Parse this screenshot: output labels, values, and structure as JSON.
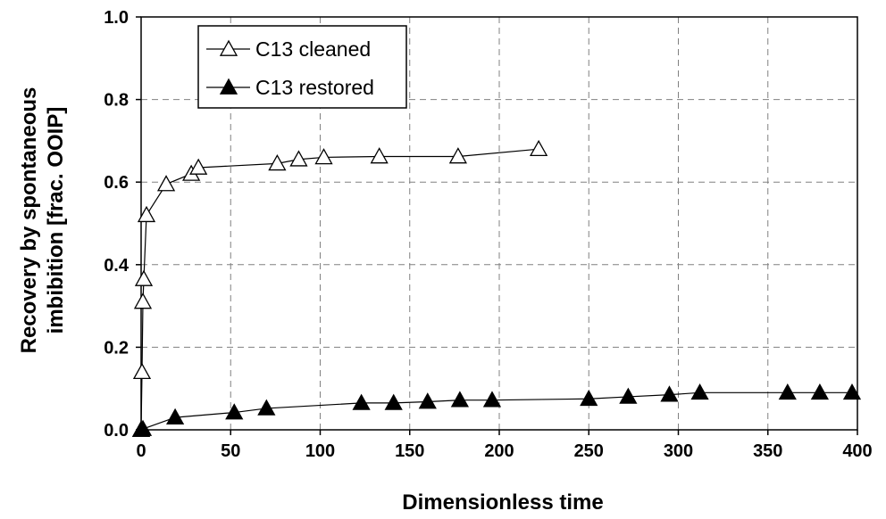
{
  "chart_data": {
    "type": "line",
    "xlabel": "Dimensionless time",
    "ylabel_lines": [
      "Recovery by spontaneous",
      "imbibition [frac. OOIP]"
    ],
    "xlim": [
      0,
      400
    ],
    "ylim": [
      0,
      1.0
    ],
    "x_ticks": [
      "0",
      "50",
      "100",
      "150",
      "200",
      "250",
      "300",
      "350",
      "400"
    ],
    "y_ticks": [
      "0.0",
      "0.2",
      "0.4",
      "0.6",
      "0.8",
      "1.0"
    ],
    "grid": true,
    "legend_position": "top-left",
    "series": [
      {
        "name": "C13 cleaned",
        "marker": "open-triangle",
        "points": [
          [
            0,
            0
          ],
          [
            0.5,
            0.14
          ],
          [
            1,
            0.31
          ],
          [
            1.5,
            0.365
          ],
          [
            3,
            0.52
          ],
          [
            14,
            0.595
          ],
          [
            28,
            0.62
          ],
          [
            32,
            0.635
          ],
          [
            76,
            0.645
          ],
          [
            88,
            0.655
          ],
          [
            102,
            0.66
          ],
          [
            133,
            0.662
          ],
          [
            177,
            0.662
          ],
          [
            222,
            0.68
          ]
        ]
      },
      {
        "name": "C13 restored",
        "marker": "filled-triangle",
        "points": [
          [
            0,
            0
          ],
          [
            1,
            0.002
          ],
          [
            19,
            0.03
          ],
          [
            52,
            0.042
          ],
          [
            70,
            0.052
          ],
          [
            123,
            0.065
          ],
          [
            141,
            0.065
          ],
          [
            160,
            0.068
          ],
          [
            178,
            0.072
          ],
          [
            196,
            0.072
          ],
          [
            250,
            0.075
          ],
          [
            272,
            0.08
          ],
          [
            295,
            0.085
          ],
          [
            312,
            0.09
          ],
          [
            361,
            0.09
          ],
          [
            379,
            0.09
          ],
          [
            397,
            0.09
          ]
        ]
      }
    ]
  }
}
